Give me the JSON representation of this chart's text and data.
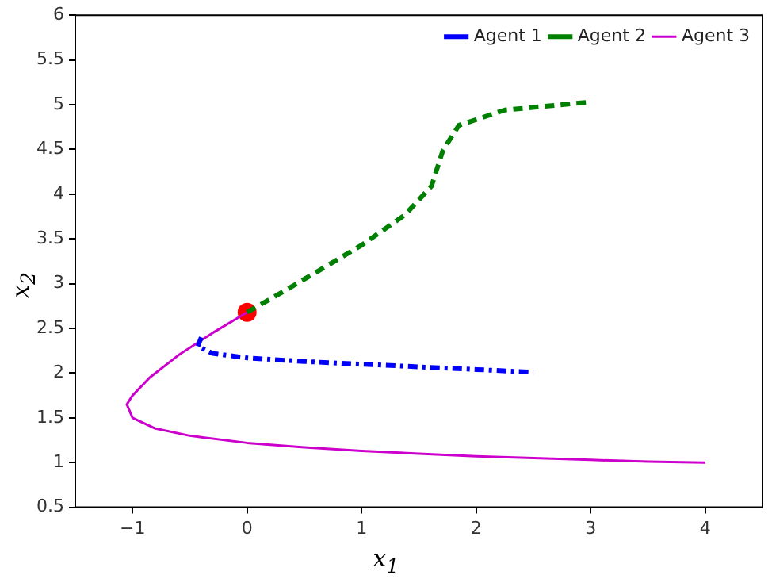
{
  "chart_data": {
    "type": "line",
    "xlabel": "x$_{1}$",
    "ylabel": "x$_{2}$",
    "legend": "top right",
    "grid": false,
    "marker": "none",
    "xlim": [
      -1.5,
      4.5
    ],
    "xticks": [
      {
        "value": -1,
        "label": "−1"
      },
      0,
      1,
      2,
      3,
      4
    ],
    "ylim": [
      0.5,
      6
    ],
    "yticks": [
      0.5,
      1,
      1.5,
      2,
      2.5,
      3,
      3.5,
      4,
      4.5,
      5,
      5.5,
      6
    ],
    "series": [
      {
        "name": "Agent 1",
        "color": "#0000ff",
        "line_style": "dashdot",
        "x": [
          -0.4,
          -0.43,
          -0.3,
          0,
          0.5,
          1,
          1.5,
          2,
          2.5
        ],
        "values": [
          2.4,
          2.3,
          2.22,
          2.17,
          2.13,
          2.1,
          2.07,
          2.04,
          2.01
        ]
      },
      {
        "name": "Agent 2",
        "color": "#008000",
        "line_style": "dashed",
        "x": [
          0,
          0.3,
          0.66,
          1,
          1.38,
          1.61,
          1.71,
          1.85,
          2.25,
          3
        ],
        "values": [
          2.68,
          2.9,
          3.17,
          3.43,
          3.77,
          4.09,
          4.49,
          4.77,
          4.94,
          5.03
        ]
      },
      {
        "name": "Agent 3",
        "color": "#cc00cc",
        "line_style": "solid",
        "x": [
          0,
          -0.3,
          -0.6,
          -0.85,
          -1,
          -1.05,
          -1,
          -0.8,
          -0.5,
          0,
          0.5,
          1,
          1.5,
          2,
          2.5,
          3,
          3.5,
          4
        ],
        "values": [
          2.68,
          2.45,
          2.2,
          1.95,
          1.75,
          1.65,
          1.5,
          1.38,
          1.3,
          1.22,
          1.17,
          1.13,
          1.1,
          1.07,
          1.05,
          1.03,
          1.01,
          1
        ]
      },
      {
        "type": "scatter",
        "marker": "circle",
        "color": "#ff0000",
        "x": [
          0
        ],
        "values": [
          2.68
        ]
      }
    ]
  }
}
